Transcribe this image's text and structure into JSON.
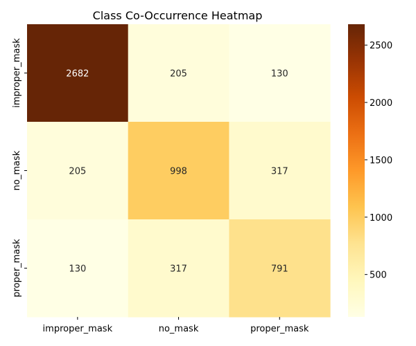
{
  "chart_data": {
    "type": "heatmap",
    "title": "Class Co-Occurrence Heatmap",
    "xlabel": "",
    "ylabel": "",
    "x_categories": [
      "improper_mask",
      "no_mask",
      "proper_mask"
    ],
    "y_categories": [
      "improper_mask",
      "no_mask",
      "proper_mask"
    ],
    "values": [
      [
        2682,
        205,
        130
      ],
      [
        205,
        998,
        317
      ],
      [
        130,
        317,
        791
      ]
    ],
    "annotations": [
      [
        "2682",
        "205",
        "130"
      ],
      [
        "205",
        "998",
        "317"
      ],
      [
        "130",
        "317",
        "791"
      ]
    ],
    "colorbar": {
      "vmin": 130,
      "vmax": 2682,
      "ticks": [
        500,
        1000,
        1500,
        2000,
        2500
      ],
      "tick_labels": [
        "500",
        "1000",
        "1500",
        "2000",
        "2500"
      ]
    },
    "colormap": "YlOrBr",
    "colors": {
      "stops": [
        "#ffffe5",
        "#fff7bc",
        "#fee391",
        "#fec44f",
        "#fe9929",
        "#ec7014",
        "#cc4c02",
        "#993404",
        "#662506"
      ],
      "annotation_light": "#ffffff",
      "annotation_dark": "#262626"
    },
    "grid": false,
    "legend": "none"
  }
}
